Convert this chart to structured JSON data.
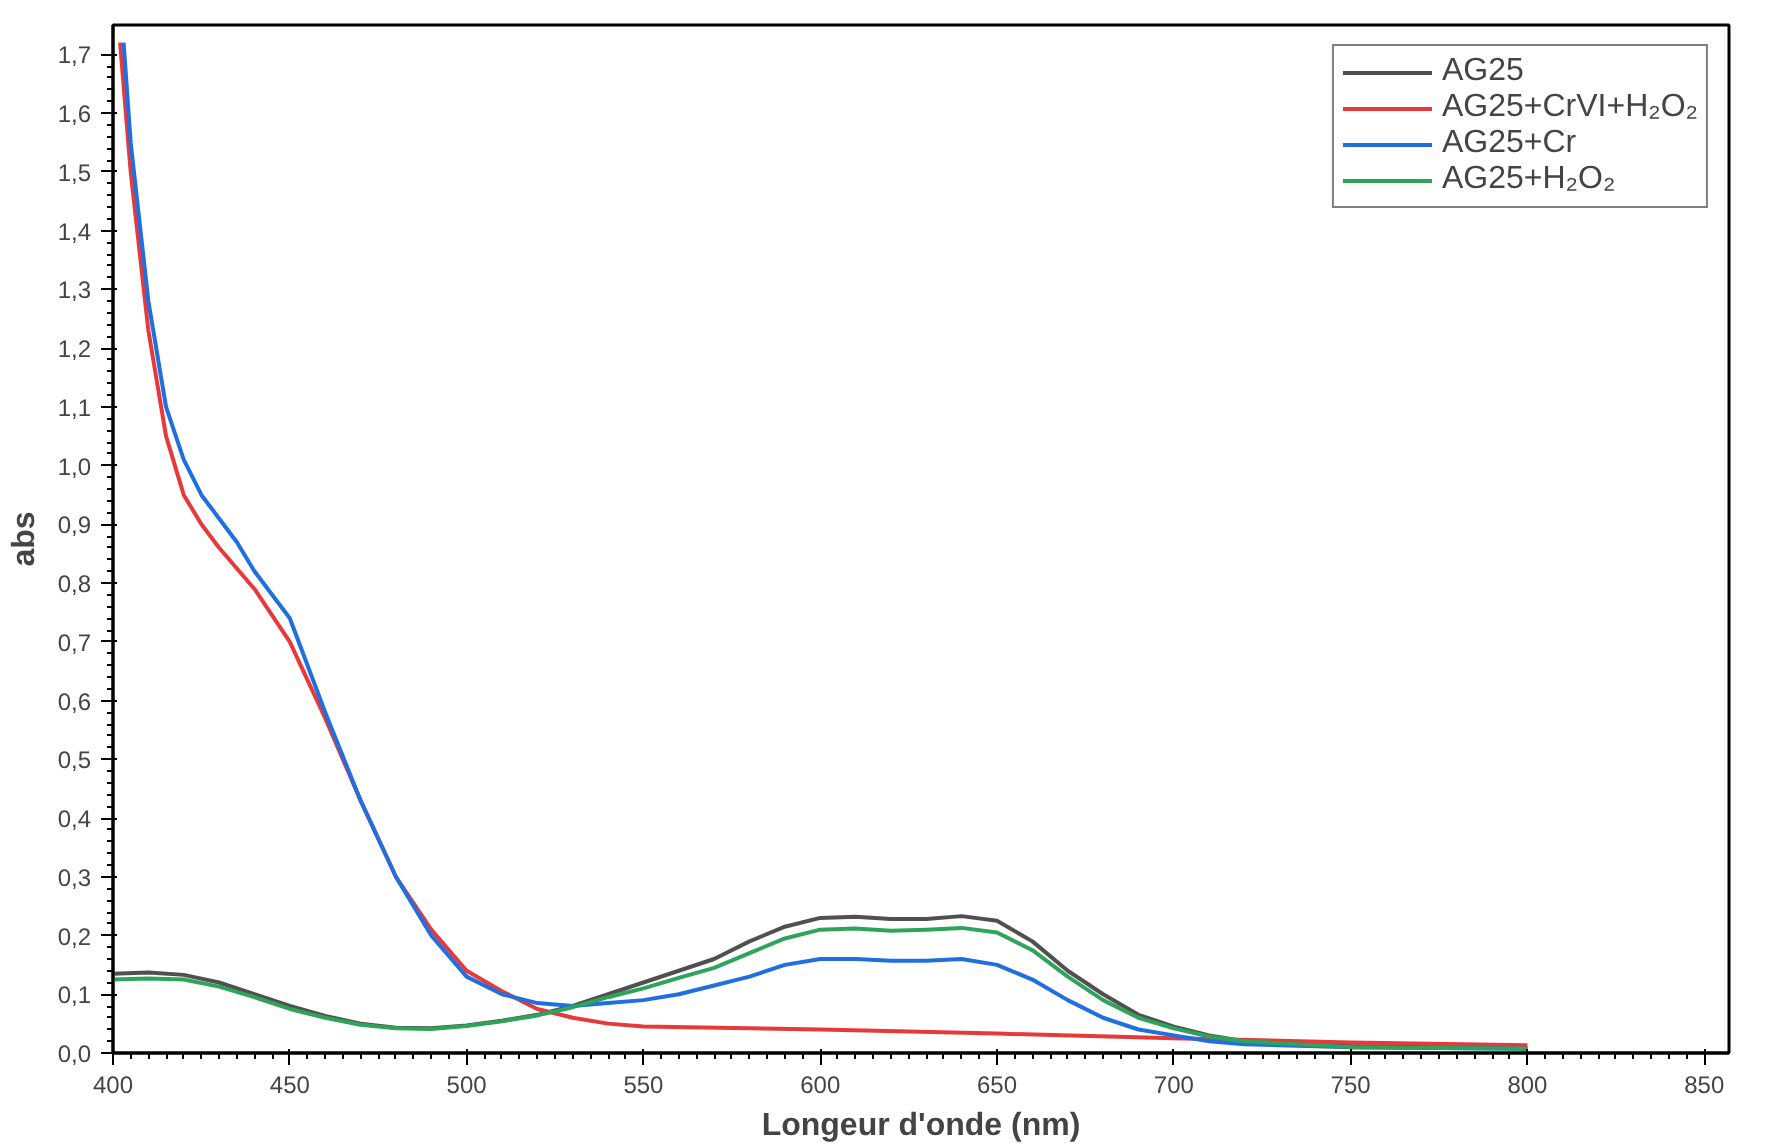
{
  "chart_data": {
    "type": "line",
    "xlabel": "Longeur d'onde (nm)",
    "ylabel": "abs",
    "xlim": [
      400,
      857
    ],
    "ylim": [
      0,
      1.75
    ],
    "xticks": [
      400,
      450,
      500,
      550,
      600,
      650,
      700,
      750,
      800,
      850
    ],
    "yticks": [
      {
        "value": 0,
        "label": "0,0"
      },
      {
        "value": 0.1,
        "label": "0,1"
      },
      {
        "value": 0.2,
        "label": "0,2"
      },
      {
        "value": 0.3,
        "label": "0,3"
      },
      {
        "value": 0.4,
        "label": "0,4"
      },
      {
        "value": 0.5,
        "label": "0,5"
      },
      {
        "value": 0.6,
        "label": "0,6"
      },
      {
        "value": 0.7,
        "label": "0,7"
      },
      {
        "value": 0.8,
        "label": "0,8"
      },
      {
        "value": 0.9,
        "label": "0,9"
      },
      {
        "value": 1.0,
        "label": "1,0"
      },
      {
        "value": 1.1,
        "label": "1,1"
      },
      {
        "value": 1.2,
        "label": "1,2"
      },
      {
        "value": 1.3,
        "label": "1,3"
      },
      {
        "value": 1.4,
        "label": "1,4"
      },
      {
        "value": 1.5,
        "label": "1,5"
      },
      {
        "value": 1.6,
        "label": "1,6"
      },
      {
        "value": 1.7,
        "label": "1,7"
      }
    ],
    "grid": false,
    "legend": "top right",
    "marker": "none",
    "line_style": "solid",
    "series": [
      {
        "name": "AG25",
        "color": "#505050",
        "x": [
          400,
          410,
          420,
          430,
          440,
          450,
          460,
          470,
          480,
          490,
          500,
          510,
          520,
          530,
          540,
          550,
          560,
          570,
          580,
          590,
          600,
          610,
          620,
          630,
          640,
          650,
          660,
          670,
          680,
          690,
          700,
          710,
          720,
          750,
          800
        ],
        "values": [
          0.135,
          0.137,
          0.133,
          0.12,
          0.1,
          0.08,
          0.063,
          0.05,
          0.043,
          0.042,
          0.047,
          0.055,
          0.065,
          0.08,
          0.1,
          0.12,
          0.14,
          0.16,
          0.19,
          0.215,
          0.23,
          0.232,
          0.228,
          0.228,
          0.233,
          0.225,
          0.19,
          0.14,
          0.1,
          0.065,
          0.045,
          0.03,
          0.02,
          0.012,
          0.008
        ]
      },
      {
        "name": "AG25+CrVI+H₂O₂",
        "color": "#e8393a",
        "x": [
          402,
          405,
          410,
          415,
          420,
          425,
          430,
          440,
          450,
          460,
          470,
          480,
          490,
          500,
          510,
          520,
          530,
          540,
          550,
          600,
          650,
          700,
          750,
          800
        ],
        "values": [
          1.72,
          1.5,
          1.23,
          1.05,
          0.95,
          0.9,
          0.86,
          0.79,
          0.7,
          0.57,
          0.43,
          0.3,
          0.21,
          0.14,
          0.105,
          0.075,
          0.06,
          0.05,
          0.045,
          0.04,
          0.033,
          0.025,
          0.018,
          0.013
        ]
      },
      {
        "name": "AG25+Cr",
        "color": "#1f6fe0",
        "x": [
          403,
          405,
          410,
          415,
          420,
          425,
          430,
          435,
          440,
          450,
          460,
          470,
          480,
          490,
          500,
          510,
          520,
          530,
          540,
          550,
          560,
          570,
          580,
          590,
          600,
          610,
          620,
          630,
          640,
          650,
          660,
          670,
          680,
          690,
          700,
          710,
          720,
          750,
          800
        ],
        "values": [
          1.72,
          1.55,
          1.28,
          1.1,
          1.01,
          0.95,
          0.91,
          0.87,
          0.82,
          0.74,
          0.58,
          0.43,
          0.3,
          0.2,
          0.13,
          0.1,
          0.085,
          0.08,
          0.085,
          0.09,
          0.1,
          0.115,
          0.13,
          0.15,
          0.16,
          0.16,
          0.157,
          0.157,
          0.16,
          0.15,
          0.125,
          0.09,
          0.06,
          0.04,
          0.03,
          0.02,
          0.015,
          0.01,
          0.007
        ]
      },
      {
        "name": "AG25+H₂O₂",
        "color": "#2ea35a",
        "x": [
          400,
          410,
          420,
          430,
          440,
          450,
          460,
          470,
          480,
          490,
          500,
          510,
          520,
          530,
          540,
          550,
          560,
          570,
          580,
          590,
          600,
          610,
          620,
          630,
          640,
          650,
          660,
          670,
          680,
          690,
          700,
          710,
          720,
          750,
          800
        ],
        "values": [
          0.125,
          0.127,
          0.125,
          0.113,
          0.095,
          0.075,
          0.06,
          0.048,
          0.042,
          0.041,
          0.046,
          0.054,
          0.064,
          0.078,
          0.095,
          0.11,
          0.128,
          0.145,
          0.17,
          0.195,
          0.21,
          0.212,
          0.208,
          0.21,
          0.213,
          0.205,
          0.175,
          0.13,
          0.09,
          0.06,
          0.042,
          0.028,
          0.02,
          0.01,
          0.007
        ]
      }
    ]
  }
}
